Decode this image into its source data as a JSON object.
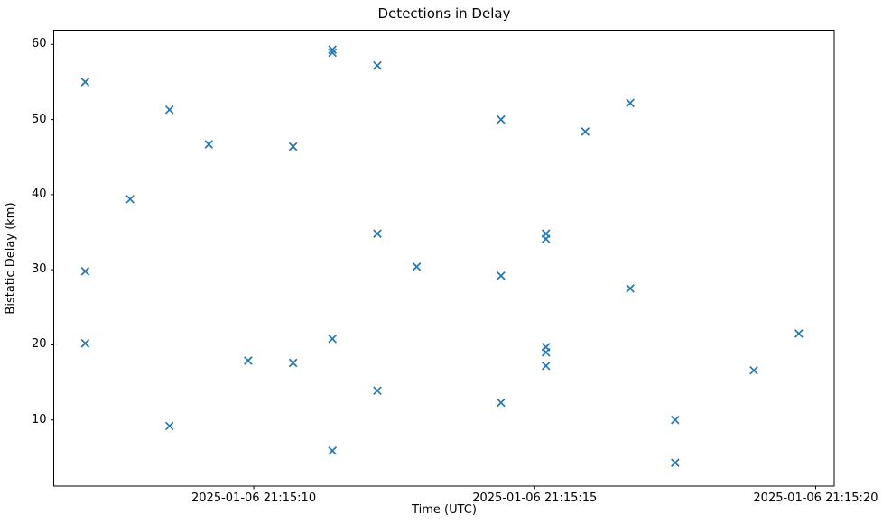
{
  "chart_data": {
    "type": "scatter",
    "title": "Detections in Delay",
    "xlabel": "Time (UTC)",
    "ylabel": "Bistatic Delay (km)",
    "marker": "x",
    "marker_color": "#1f77b4",
    "spine_color": "#000000",
    "grid": false,
    "legend": null,
    "x_base_time": "2025-01-06 21:15:00",
    "xlim_seconds_after_base": [
      6.44,
      20.33
    ],
    "ylim": [
      1.2,
      61.9
    ],
    "x_ticks": [
      {
        "seconds": 10,
        "label": "2025-01-06 21:15:10"
      },
      {
        "seconds": 15,
        "label": "2025-01-06 21:15:15"
      },
      {
        "seconds": 20,
        "label": "2025-01-06 21:15:20"
      }
    ],
    "y_ticks": [
      10,
      20,
      30,
      40,
      50,
      60
    ],
    "points": [
      {
        "time": "2025-01-06 21:15:07.0",
        "seconds": 7.0,
        "delay_km": 55.0
      },
      {
        "time": "2025-01-06 21:15:07.0",
        "seconds": 7.0,
        "delay_km": 29.8
      },
      {
        "time": "2025-01-06 21:15:07.0",
        "seconds": 7.0,
        "delay_km": 20.2
      },
      {
        "time": "2025-01-06 21:15:07.8",
        "seconds": 7.8,
        "delay_km": 39.4
      },
      {
        "time": "2025-01-06 21:15:08.5",
        "seconds": 8.5,
        "delay_km": 51.3
      },
      {
        "time": "2025-01-06 21:15:08.5",
        "seconds": 8.5,
        "delay_km": 9.2
      },
      {
        "time": "2025-01-06 21:15:09.2",
        "seconds": 9.2,
        "delay_km": 46.7
      },
      {
        "time": "2025-01-06 21:15:09.9",
        "seconds": 9.9,
        "delay_km": 17.9
      },
      {
        "time": "2025-01-06 21:15:10.7",
        "seconds": 10.7,
        "delay_km": 46.4
      },
      {
        "time": "2025-01-06 21:15:10.7",
        "seconds": 10.7,
        "delay_km": 17.6
      },
      {
        "time": "2025-01-06 21:15:11.4",
        "seconds": 11.4,
        "delay_km": 59.3
      },
      {
        "time": "2025-01-06 21:15:11.4",
        "seconds": 11.4,
        "delay_km": 58.9
      },
      {
        "time": "2025-01-06 21:15:11.4",
        "seconds": 11.4,
        "delay_km": 20.8
      },
      {
        "time": "2025-01-06 21:15:11.4",
        "seconds": 11.4,
        "delay_km": 5.9
      },
      {
        "time": "2025-01-06 21:15:12.2",
        "seconds": 12.2,
        "delay_km": 57.2
      },
      {
        "time": "2025-01-06 21:15:12.2",
        "seconds": 12.2,
        "delay_km": 34.8
      },
      {
        "time": "2025-01-06 21:15:12.2",
        "seconds": 12.2,
        "delay_km": 13.9
      },
      {
        "time": "2025-01-06 21:15:12.9",
        "seconds": 12.9,
        "delay_km": 30.4
      },
      {
        "time": "2025-01-06 21:15:14.4",
        "seconds": 14.4,
        "delay_km": 50.0
      },
      {
        "time": "2025-01-06 21:15:14.4",
        "seconds": 14.4,
        "delay_km": 29.2
      },
      {
        "time": "2025-01-06 21:15:14.4",
        "seconds": 14.4,
        "delay_km": 12.3
      },
      {
        "time": "2025-01-06 21:15:15.2",
        "seconds": 15.2,
        "delay_km": 34.8
      },
      {
        "time": "2025-01-06 21:15:15.2",
        "seconds": 15.2,
        "delay_km": 34.1
      },
      {
        "time": "2025-01-06 21:15:15.2",
        "seconds": 15.2,
        "delay_km": 19.7
      },
      {
        "time": "2025-01-06 21:15:15.2",
        "seconds": 15.2,
        "delay_km": 19.0
      },
      {
        "time": "2025-01-06 21:15:15.2",
        "seconds": 15.2,
        "delay_km": 17.2
      },
      {
        "time": "2025-01-06 21:15:15.9",
        "seconds": 15.9,
        "delay_km": 48.4
      },
      {
        "time": "2025-01-06 21:15:16.7",
        "seconds": 16.7,
        "delay_km": 52.2
      },
      {
        "time": "2025-01-06 21:15:16.7",
        "seconds": 16.7,
        "delay_km": 27.5
      },
      {
        "time": "2025-01-06 21:15:17.5",
        "seconds": 17.5,
        "delay_km": 10.0
      },
      {
        "time": "2025-01-06 21:15:17.5",
        "seconds": 17.5,
        "delay_km": 4.3
      },
      {
        "time": "2025-01-06 21:15:18.9",
        "seconds": 18.9,
        "delay_km": 16.6
      },
      {
        "time": "2025-01-06 21:15:19.7",
        "seconds": 19.7,
        "delay_km": 21.5
      }
    ]
  }
}
